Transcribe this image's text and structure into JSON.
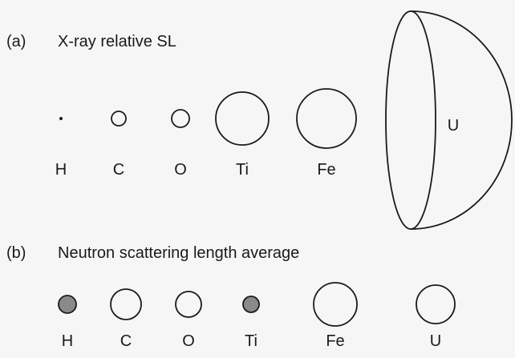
{
  "panel_a": {
    "label": "(a)",
    "title": "X-ray relative SL",
    "elements": [
      "H",
      "C",
      "O",
      "Ti",
      "Fe",
      "U"
    ]
  },
  "panel_b": {
    "label": "(b)",
    "title": "Neutron scattering length average",
    "elements": [
      "H",
      "C",
      "O",
      "Ti",
      "Fe",
      "U"
    ]
  },
  "colors": {
    "background": "#f6f6f6",
    "stroke": "#1a1a1a",
    "negative_fill": "#8a8a8a",
    "positive_fill": "#ffffff"
  }
}
